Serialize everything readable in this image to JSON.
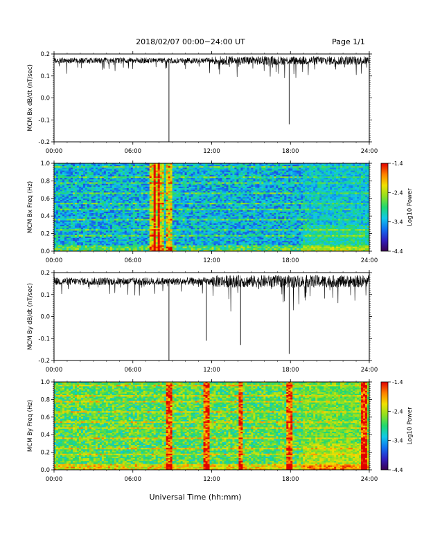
{
  "header": {
    "title": "2018/02/07  00:00−24:00 UT",
    "page": "Page 1/1"
  },
  "xaxis": {
    "label": "Universal Time (hh:mm)",
    "ticks": [
      "00:00",
      "06:00",
      "12:00",
      "18:00",
      "24:00"
    ],
    "range_hours": [
      0,
      24
    ]
  },
  "colorbar": {
    "label": "Log10 Power",
    "ticks": [
      "-1.4",
      "-2.4",
      "-3.4",
      "-4.4"
    ],
    "range": [
      -4.4,
      -1.4
    ],
    "colors": [
      "#3a0050",
      "#3020c0",
      "#1070f0",
      "#10c8e8",
      "#20d870",
      "#90e020",
      "#f0e000",
      "#ff8000",
      "#e00000"
    ]
  },
  "chart_data": [
    {
      "type": "line",
      "ylabel": "MCM Bx dB/dt (nT/sec)",
      "yticks": [
        "0.2",
        "0.1",
        "0.0",
        "-0.1",
        "-0.2"
      ],
      "ylim": [
        -0.2,
        0.2
      ],
      "baseline": 0.17,
      "noise": 0.025,
      "spikes": [
        {
          "t": 8.75,
          "v": -0.2
        },
        {
          "t": 17.9,
          "v": -0.12
        }
      ]
    },
    {
      "type": "heatmap",
      "ylabel": "MCM Bx Freq (Hz)",
      "yticks": [
        "1.0",
        "0.8",
        "0.6",
        "0.4",
        "0.2",
        "0.0"
      ],
      "ylim": [
        0,
        1.0
      ],
      "base_level": 0.35,
      "bright_columns": [
        7.5,
        7.8,
        8.1,
        8.8
      ],
      "late_level": 0.45
    },
    {
      "type": "line",
      "ylabel": "MCM By dB/dt (nT/sec)",
      "yticks": [
        "0.2",
        "0.1",
        "0.0",
        "-0.1",
        "-0.2"
      ],
      "ylim": [
        -0.2,
        0.2
      ],
      "baseline": 0.16,
      "noise": 0.035,
      "spikes": [
        {
          "t": 8.75,
          "v": -0.2
        },
        {
          "t": 11.6,
          "v": -0.11
        },
        {
          "t": 14.2,
          "v": -0.13
        },
        {
          "t": 17.9,
          "v": -0.17
        }
      ]
    },
    {
      "type": "heatmap",
      "ylabel": "MCM By Freq (Hz)",
      "yticks": [
        "1.0",
        "0.8",
        "0.6",
        "0.4",
        "0.2",
        "0.0"
      ],
      "ylim": [
        0,
        1.0
      ],
      "base_level": 0.55,
      "bright_columns": [
        8.8,
        11.6,
        14.2,
        17.9,
        23.6
      ],
      "late_level": 0.65
    }
  ]
}
